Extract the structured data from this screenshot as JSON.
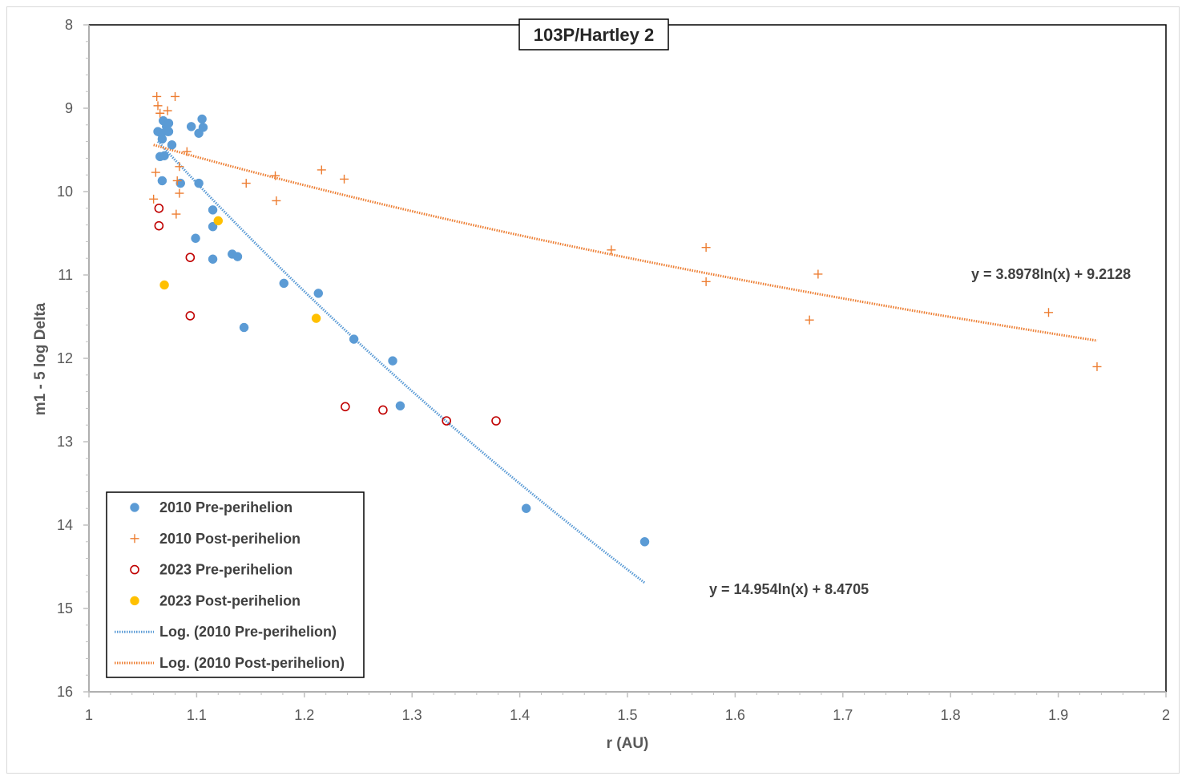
{
  "chart_data": {
    "type": "scatter",
    "title": "103P/Hartley 2",
    "xlabel": "r (AU)",
    "ylabel": "m1 - 5 log Delta",
    "xlim": [
      1,
      2
    ],
    "ylim": [
      8,
      16
    ],
    "y_inverted": true,
    "x_ticks": [
      "1",
      "1.1",
      "1.2",
      "1.3",
      "1.4",
      "1.5",
      "1.6",
      "1.7",
      "1.8",
      "1.9",
      "2"
    ],
    "y_ticks": [
      "8",
      "9",
      "10",
      "11",
      "12",
      "13",
      "14",
      "15",
      "16"
    ],
    "grid": false,
    "legend_position": "bottom-left",
    "series": [
      {
        "name": "2010 Pre-perihelion",
        "marker": "filled-circle",
        "color": "#5b9bd5",
        "points": [
          [
            1.064,
            9.28
          ],
          [
            1.066,
            9.58
          ],
          [
            1.067,
            9.3
          ],
          [
            1.068,
            9.37
          ],
          [
            1.068,
            9.87
          ],
          [
            1.069,
            9.15
          ],
          [
            1.07,
            9.57
          ],
          [
            1.072,
            9.22
          ],
          [
            1.073,
            9.28
          ],
          [
            1.074,
            9.18
          ],
          [
            1.074,
            9.28
          ],
          [
            1.077,
            9.44
          ],
          [
            1.085,
            9.9
          ],
          [
            1.095,
            9.22
          ],
          [
            1.099,
            10.56
          ],
          [
            1.102,
            9.3
          ],
          [
            1.102,
            9.9
          ],
          [
            1.105,
            9.13
          ],
          [
            1.106,
            9.23
          ],
          [
            1.115,
            10.22
          ],
          [
            1.115,
            10.42
          ],
          [
            1.115,
            10.81
          ],
          [
            1.133,
            10.75
          ],
          [
            1.138,
            10.78
          ],
          [
            1.144,
            11.63
          ],
          [
            1.181,
            11.1
          ],
          [
            1.213,
            11.22
          ],
          [
            1.246,
            11.77
          ],
          [
            1.282,
            12.03
          ],
          [
            1.289,
            12.57
          ],
          [
            1.406,
            13.8
          ],
          [
            1.516,
            14.2
          ]
        ]
      },
      {
        "name": "2010 Post-perihelion",
        "marker": "plus",
        "color": "#ed7d31",
        "points": [
          [
            1.06,
            10.09
          ],
          [
            1.062,
            9.77
          ],
          [
            1.063,
            8.86
          ],
          [
            1.064,
            8.97
          ],
          [
            1.066,
            9.06
          ],
          [
            1.073,
            9.03
          ],
          [
            1.08,
            8.86
          ],
          [
            1.081,
            10.27
          ],
          [
            1.082,
            9.87
          ],
          [
            1.084,
            9.7
          ],
          [
            1.084,
            10.02
          ],
          [
            1.091,
            9.52
          ],
          [
            1.146,
            9.9
          ],
          [
            1.173,
            9.81
          ],
          [
            1.174,
            10.11
          ],
          [
            1.216,
            9.74
          ],
          [
            1.237,
            9.85
          ],
          [
            1.485,
            10.7
          ],
          [
            1.573,
            10.67
          ],
          [
            1.573,
            11.08
          ],
          [
            1.669,
            11.54
          ],
          [
            1.677,
            10.99
          ],
          [
            1.891,
            11.45
          ],
          [
            1.936,
            12.1
          ]
        ]
      },
      {
        "name": "2023 Pre-perihelion",
        "marker": "open-circle",
        "color": "#c00000",
        "points": [
          [
            1.065,
            10.2
          ],
          [
            1.065,
            10.41
          ],
          [
            1.094,
            10.79
          ],
          [
            1.094,
            11.49
          ],
          [
            1.238,
            12.58
          ],
          [
            1.273,
            12.62
          ],
          [
            1.332,
            12.75
          ],
          [
            1.378,
            12.75
          ]
        ]
      },
      {
        "name": "2023 Post-perihelion",
        "marker": "filled-circle",
        "color": "#ffc000",
        "points": [
          [
            1.07,
            11.12
          ],
          [
            1.12,
            10.35
          ],
          [
            1.211,
            11.52
          ]
        ]
      }
    ],
    "trendlines": [
      {
        "name": "Log. (2010 Pre-perihelion)",
        "type": "logarithmic",
        "color": "#5b9bd5",
        "a": 14.954,
        "b": 8.4705,
        "x_range": [
          1.064,
          1.516
        ],
        "equation": "y = 14.954ln(x) + 8.4705"
      },
      {
        "name": "Log. (2010 Post-perihelion)",
        "type": "logarithmic",
        "color": "#ed7d31",
        "a": 3.8978,
        "b": 9.2128,
        "x_range": [
          1.06,
          1.936
        ],
        "equation": "y = 3.8978ln(x) + 9.2128"
      }
    ],
    "legend": [
      "2010 Pre-perihelion",
      "2010 Post-perihelion",
      "2023 Pre-perihelion",
      "2023 Post-perihelion",
      "Log. (2010 Pre-perihelion)",
      "Log. (2010 Post-perihelion)"
    ]
  }
}
